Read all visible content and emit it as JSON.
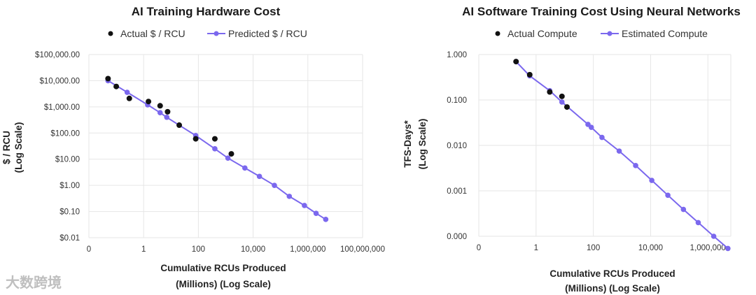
{
  "colors": {
    "actual": "#111111",
    "predicted": "#7b68ee",
    "grid": "#e6e6e6"
  },
  "watermark": "大数跨境",
  "chart_data": [
    {
      "type": "line",
      "title": "AI Training Hardware Cost",
      "legend": [
        "Actual $ / RCU",
        "Predicted $ / RCU"
      ],
      "ylabel_line1": "$ / RCU",
      "ylabel_line2": "(Log Scale)",
      "xlabel_line1": "Cumulative RCUs Produced",
      "xlabel_line2": "(Millions) (Log Scale)",
      "x_scale": "log",
      "y_scale": "log",
      "xlim_log10": [
        -2,
        8
      ],
      "ylim_log10": [
        -2,
        5
      ],
      "x_ticks": [
        {
          "label": "0",
          "log": -2
        },
        {
          "label": "1",
          "log": 0
        },
        {
          "label": "100",
          "log": 2
        },
        {
          "label": "10,000",
          "log": 4
        },
        {
          "label": "1,000,000",
          "log": 6
        },
        {
          "label": "100,000,000",
          "log": 8
        }
      ],
      "y_ticks": [
        {
          "label": "$100,000.00",
          "log": 5
        },
        {
          "label": "$10,000.00",
          "log": 4
        },
        {
          "label": "$1,000.00",
          "log": 3
        },
        {
          "label": "$100.00",
          "log": 2
        },
        {
          "label": "$10.00",
          "log": 1
        },
        {
          "label": "$1.00",
          "log": 0
        },
        {
          "label": "$0.10",
          "log": -1
        },
        {
          "label": "$0.01",
          "log": -2
        }
      ],
      "series": [
        {
          "name": "Actual $ / RCU",
          "kind": "scatter",
          "x": [
            0.05,
            0.1,
            0.3,
            1.5,
            4,
            7.5,
            20,
            80,
            400,
            1600
          ],
          "y": [
            12000,
            6000,
            2100,
            1600,
            1100,
            650,
            200,
            60,
            60,
            16
          ]
        },
        {
          "name": "Predicted $ / RCU",
          "kind": "line",
          "x": [
            0.05,
            0.25,
            1.4,
            4,
            7,
            80,
            400,
            1200,
            5000,
            17000,
            60000,
            210000,
            750000,
            2000000,
            4500000
          ],
          "y": [
            10000,
            3600,
            1200,
            600,
            400,
            80,
            25,
            11,
            4.6,
            2.2,
            1.0,
            0.38,
            0.17,
            0.085,
            0.05
          ]
        }
      ]
    },
    {
      "type": "line",
      "title": "AI Software Training Cost Using Neural Networks",
      "legend": [
        "Actual Compute",
        "Estimated Compute"
      ],
      "ylabel_line1": "TFS-Days*",
      "ylabel_line2": "(Log Scale)",
      "xlabel_line1": "Cumulative RCUs Produced",
      "xlabel_line2": "(Millions) (Log Scale)",
      "x_scale": "log",
      "y_scale": "log",
      "xlim_log10": [
        -2,
        6.8
      ],
      "ylim_log10": [
        -4,
        0
      ],
      "x_ticks": [
        {
          "label": "0",
          "log": -2
        },
        {
          "label": "1",
          "log": 0
        },
        {
          "label": "100",
          "log": 2
        },
        {
          "label": "10,000",
          "log": 4
        },
        {
          "label": "1,000,000",
          "log": 6
        }
      ],
      "y_ticks": [
        {
          "label": "1.000",
          "log": 0
        },
        {
          "label": "0.100",
          "log": -1
        },
        {
          "label": "0.010",
          "log": -2
        },
        {
          "label": "0.001",
          "log": -3
        },
        {
          "label": "0.000",
          "log": -4
        }
      ],
      "series": [
        {
          "name": "Actual Compute",
          "kind": "scatter",
          "x": [
            0.2,
            0.6,
            3,
            8,
            12
          ],
          "y": [
            0.7,
            0.36,
            0.15,
            0.12,
            0.07
          ]
        },
        {
          "name": "Estimated Compute",
          "kind": "line",
          "x": [
            0.2,
            0.6,
            3,
            8,
            65,
            85,
            200,
            800,
            3000,
            11000,
            40000,
            140000,
            460000,
            1600000,
            5000000
          ],
          "y": [
            0.7,
            0.34,
            0.16,
            0.09,
            0.029,
            0.025,
            0.015,
            0.0075,
            0.0036,
            0.0017,
            0.0008,
            0.00039,
            0.0002,
            0.0001,
            5.4e-05
          ]
        }
      ]
    }
  ]
}
